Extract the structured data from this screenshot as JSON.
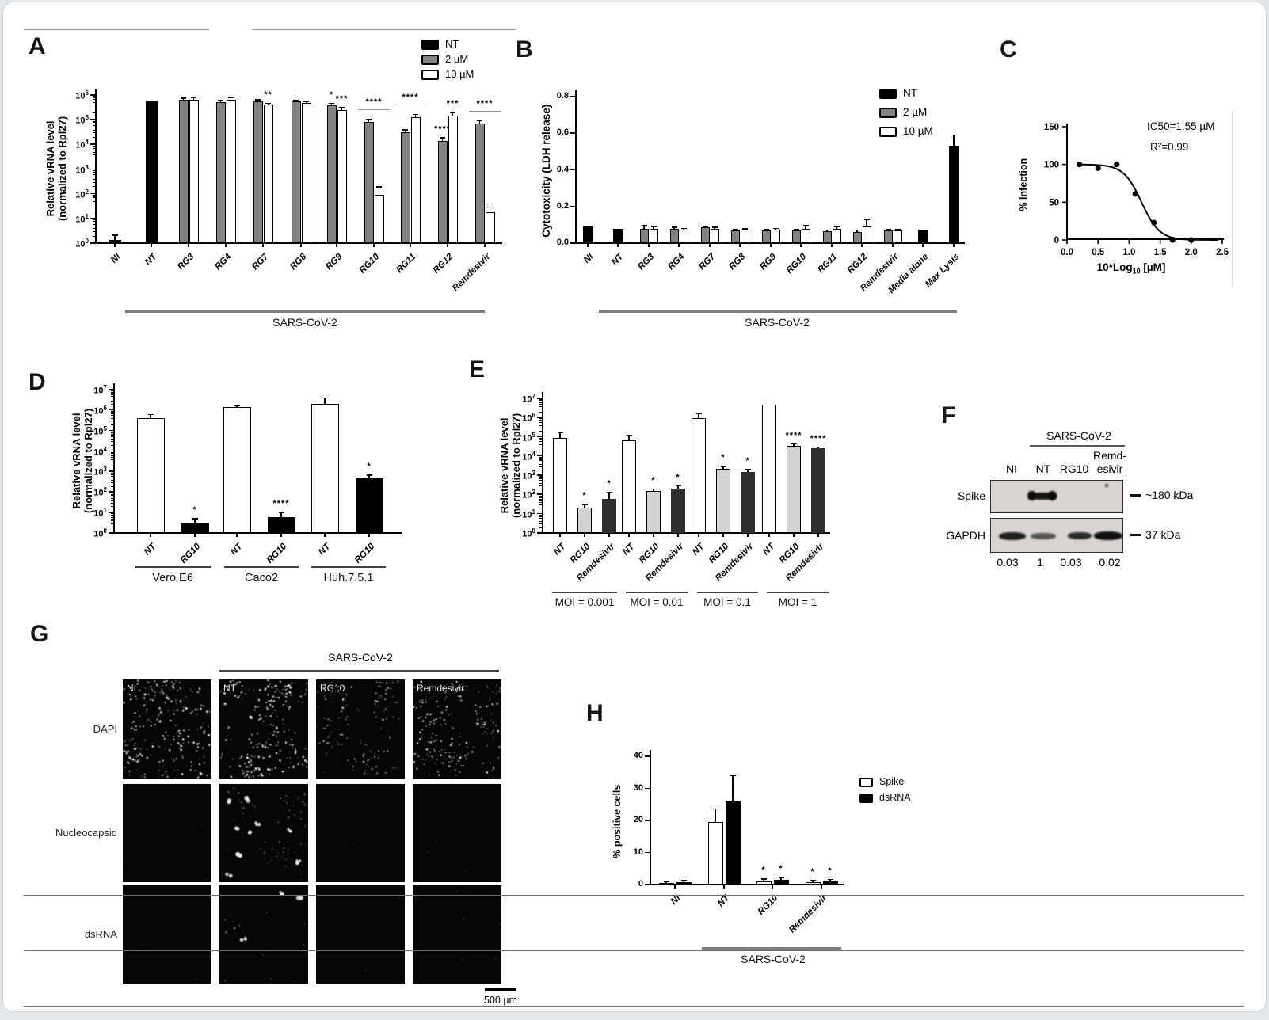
{
  "panels": {
    "a": "A",
    "b": "B",
    "c": "C",
    "d": "D",
    "e": "E",
    "f": "F",
    "g": "G",
    "h": "H"
  },
  "legend_concentration": {
    "items": [
      {
        "label": "NT",
        "color": "#000000"
      },
      {
        "label": "2 µM",
        "color": "#828282"
      },
      {
        "label": "10 µM",
        "color": "#ffffff"
      }
    ]
  },
  "chart_data": [
    {
      "id": "A",
      "type": "bar",
      "scale": "log",
      "ylabel_lines": [
        "Relative vRNA level",
        "(normalized to Rpl27)"
      ],
      "ylim_exp": [
        0,
        6
      ],
      "categories": [
        "NI",
        "NT",
        "RG3",
        "RG4",
        "RG7",
        "RG8",
        "RG9",
        "RG10",
        "RG11",
        "RG12",
        "Remdesivir"
      ],
      "group_label": "SARS-CoV-2",
      "series": [
        {
          "name": "NT",
          "color": "#000000",
          "values": [
            1.3,
            550000,
            null,
            null,
            null,
            null,
            null,
            null,
            null,
            null,
            null
          ],
          "err_hi": [
            2.1,
            null,
            null,
            null,
            null,
            null,
            null,
            null,
            null,
            null,
            null
          ],
          "sig": [
            null,
            null,
            null,
            null,
            null,
            null,
            null,
            null,
            null,
            null,
            null
          ]
        },
        {
          "name": "2 µM",
          "color": "#828282",
          "values": [
            null,
            null,
            650000,
            500000,
            570000,
            550000,
            380000,
            80000,
            30000,
            14000,
            70000
          ],
          "err_hi": [
            null,
            null,
            720000,
            600000,
            620000,
            600000,
            460000,
            105000,
            38000,
            18000,
            90000
          ],
          "sig": [
            null,
            null,
            null,
            null,
            null,
            null,
            "*",
            null,
            null,
            "****",
            null
          ]
        },
        {
          "name": "10 µM",
          "color": "#ffffff",
          "values": [
            null,
            null,
            620000,
            620000,
            400000,
            470000,
            250000,
            90,
            130000,
            150000,
            18
          ],
          "err_hi": [
            null,
            null,
            800000,
            750000,
            460000,
            520000,
            300000,
            190,
            160000,
            190000,
            28
          ],
          "sig": [
            null,
            null,
            null,
            null,
            "**",
            null,
            "***",
            null,
            null,
            "***",
            null
          ]
        }
      ],
      "sig_span": [
        null,
        null,
        null,
        null,
        null,
        null,
        null,
        "****",
        "****",
        null,
        "****"
      ]
    },
    {
      "id": "B",
      "type": "bar",
      "scale": "linear",
      "ylabel": "Cytotoxicity (LDH release)",
      "ylim": [
        0,
        0.8
      ],
      "yticks": [
        0,
        0.2,
        0.4,
        0.6,
        0.8
      ],
      "ytick_labels": [
        "0.0",
        "0.2",
        "0.4",
        "0.6",
        "0.8"
      ],
      "categories": [
        "NI",
        "NT",
        "RG3",
        "RG4",
        "RG7",
        "RG8",
        "RG9",
        "RG10",
        "RG11",
        "RG12",
        "Remdesivir",
        "Media alone",
        "Max Lysis"
      ],
      "group_label": "SARS-CoV-2",
      "series": [
        {
          "name": "NT",
          "color": "#000000",
          "values": [
            0.09,
            0.08,
            null,
            null,
            null,
            null,
            null,
            null,
            null,
            null,
            null,
            0.075,
            0.53
          ],
          "err_hi": [
            null,
            null,
            null,
            null,
            null,
            null,
            null,
            null,
            null,
            null,
            null,
            null,
            0.59
          ],
          "sig": [
            null,
            null,
            null,
            null,
            null,
            null,
            null,
            null,
            null,
            null,
            null,
            null,
            null
          ]
        },
        {
          "name": "2 µM",
          "color": "#828282",
          "values": [
            null,
            null,
            0.08,
            0.08,
            0.085,
            0.07,
            0.068,
            0.068,
            0.065,
            0.062,
            0.07,
            null,
            null
          ],
          "err_hi": [
            null,
            null,
            0.095,
            0.085,
            0.09,
            0.075,
            0.072,
            0.072,
            0.07,
            0.07,
            0.073,
            null,
            null
          ],
          "sig": [
            null,
            null,
            null,
            null,
            null,
            null,
            null,
            null,
            null,
            null,
            null,
            null,
            null
          ]
        },
        {
          "name": "10 µM",
          "color": "#ffffff",
          "values": [
            null,
            null,
            0.078,
            0.075,
            0.078,
            0.072,
            0.075,
            0.08,
            0.078,
            0.09,
            0.07,
            null,
            null
          ],
          "err_hi": [
            null,
            null,
            0.09,
            0.08,
            0.085,
            0.078,
            0.08,
            0.095,
            0.09,
            0.13,
            0.073,
            null,
            null
          ],
          "sig": [
            null,
            null,
            null,
            null,
            null,
            null,
            null,
            null,
            null,
            null,
            null,
            null,
            null
          ]
        }
      ]
    },
    {
      "id": "C",
      "type": "scatter-curve",
      "ylabel": "% Infection",
      "xlabel_prefix": "10*Log",
      "xlabel_sub": "10",
      "xlabel_suffix": " [µM]",
      "annotations": [
        "IC50=1.55 µM",
        "R²=0.99"
      ],
      "ylim": [
        0,
        150
      ],
      "yticks": [
        0,
        50,
        100,
        150
      ],
      "xlim": [
        0,
        2.5
      ],
      "xticks": [
        "0.0",
        "0.5",
        "1.0",
        "1.5",
        "2.0",
        "2.5"
      ],
      "points": [
        [
          0.2,
          100
        ],
        [
          0.5,
          95
        ],
        [
          0.8,
          100
        ],
        [
          1.1,
          61
        ],
        [
          1.4,
          23
        ],
        [
          1.7,
          0
        ],
        [
          2.0,
          0
        ]
      ],
      "curve": {
        "top": 100,
        "bottom": 0,
        "xmid": 1.2,
        "hill": 3.0
      }
    },
    {
      "id": "D",
      "type": "bar",
      "scale": "log",
      "ylabel_lines": [
        "Relative vRNA level",
        "(normalized to Rpl27)"
      ],
      "ylim_exp": [
        0,
        7
      ],
      "categories": [
        "Vero E6",
        "Caco2",
        "Huh.7.5.1"
      ],
      "series": [
        {
          "name": "NT",
          "color": "#ffffff",
          "values": [
            400000,
            1400000,
            2000000
          ],
          "err_hi": [
            600000,
            1600000,
            3800000
          ],
          "sig": [
            null,
            null,
            null
          ]
        },
        {
          "name": "RG10",
          "color": "#000000",
          "values": [
            3,
            6,
            500
          ],
          "err_hi": [
            5,
            10,
            650
          ],
          "sig": [
            "*",
            "****",
            "*"
          ]
        }
      ]
    },
    {
      "id": "E",
      "type": "bar",
      "scale": "log",
      "ylabel_lines": [
        "Relative vRNA level",
        "(normalized to Rpl27)"
      ],
      "ylim_exp": [
        0,
        7
      ],
      "categories": [
        "MOI = 0.001",
        "MOI = 0.01",
        "MOI = 0.1",
        "MOI = 1"
      ],
      "series": [
        {
          "name": "NT",
          "color": "#ffffff",
          "values": [
            90000,
            65000,
            900000,
            4500000
          ],
          "err_hi": [
            160000,
            120000,
            1600000,
            null
          ],
          "sig": [
            null,
            null,
            null,
            null
          ]
        },
        {
          "name": "RG10",
          "color": "#d2d2d2",
          "values": [
            20,
            150,
            2200,
            35000
          ],
          "err_hi": [
            30,
            190,
            2800,
            42000
          ],
          "sig": [
            "*",
            "*",
            "*",
            "****"
          ]
        },
        {
          "name": "Remdesivir",
          "color": "#2e2e2e",
          "values": [
            60,
            200,
            1500,
            25000
          ],
          "err_hi": [
            130,
            280,
            1900,
            29000
          ],
          "sig": [
            "*",
            "*",
            "*",
            "****"
          ]
        }
      ]
    },
    {
      "id": "H",
      "type": "bar",
      "scale": "linear",
      "ylabel": "% positive cells",
      "ylim": [
        0,
        40
      ],
      "yticks": [
        0,
        10,
        20,
        30,
        40
      ],
      "ytick_labels": [
        "0",
        "10",
        "20",
        "30",
        "40"
      ],
      "categories": [
        "NI",
        "NT",
        "RG10",
        "Remdesivir"
      ],
      "group_label": "SARS-CoV-2",
      "legend": [
        {
          "label": "Spike",
          "color": "#ffffff"
        },
        {
          "label": "dsRNA",
          "color": "#000000"
        }
      ],
      "series": [
        {
          "name": "Spike",
          "color": "#ffffff",
          "values": [
            0.5,
            19.5,
            1,
            0.7
          ],
          "err_hi": [
            0.9,
            23.5,
            1.7,
            1.2
          ],
          "sig": [
            null,
            null,
            "*",
            "*"
          ]
        },
        {
          "name": "dsRNA",
          "color": "#000000",
          "values": [
            0.8,
            26,
            1.5,
            1
          ],
          "err_hi": [
            1.2,
            34,
            2.2,
            1.6
          ],
          "sig": [
            null,
            null,
            "*",
            "*"
          ]
        }
      ]
    }
  ],
  "panel_f": {
    "group_label": "SARS-CoV-2",
    "lane_labels": [
      "NI",
      "NT",
      "RG10"
    ],
    "lane4_line1": "Remd-",
    "lane4_line2": "esivir",
    "rows": [
      {
        "name": "Spike",
        "mw": "~180 kDa"
      },
      {
        "name": "GAPDH",
        "mw": "37 kDa"
      }
    ],
    "quantification": [
      "0.03",
      "1",
      "0.03",
      "0.02"
    ]
  },
  "panel_g": {
    "group_label": "SARS-CoV-2",
    "rows": [
      "DAPI",
      "Nucleocapsid",
      "dsRNA"
    ],
    "columns": [
      "NI",
      "NT",
      "RG10",
      "Remdesivir"
    ],
    "scale_bar": "500 µm"
  }
}
